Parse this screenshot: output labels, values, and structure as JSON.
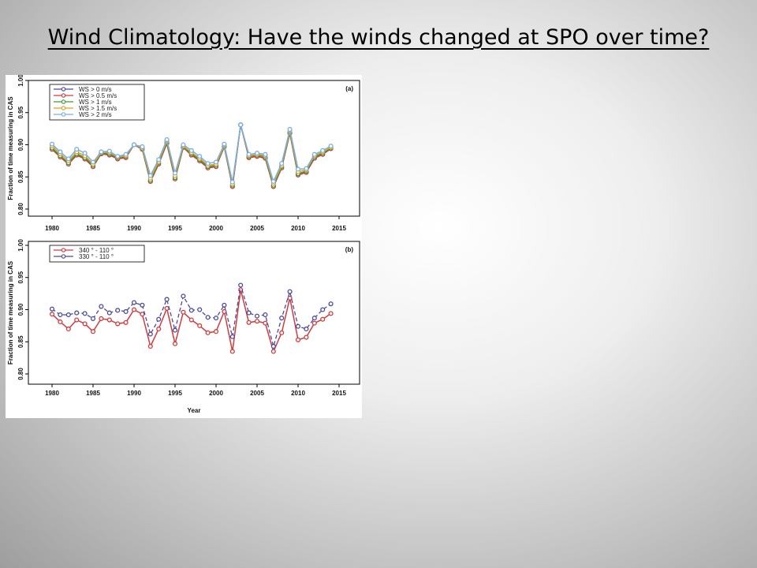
{
  "slide": {
    "title": "Wind Climatology: Have the winds changed at SPO over time?"
  },
  "chart_data": [
    {
      "type": "line",
      "panel_label": "(a)",
      "ylabel": "Fraction of time measuring in CAS",
      "xlabel": "",
      "xlim": [
        1980,
        2015
      ],
      "ylim": [
        0.8,
        1.0
      ],
      "xticks": [
        "1980",
        "1985",
        "1990",
        "1995",
        "2000",
        "2005",
        "2010",
        "2015"
      ],
      "yticks": [
        "0.80",
        "0.85",
        "0.90",
        "0.95",
        "1.00"
      ],
      "legend_position": "top-left",
      "x": [
        1980,
        1981,
        1982,
        1983,
        1984,
        1985,
        1986,
        1987,
        1988,
        1989,
        1990,
        1991,
        1992,
        1993,
        1994,
        1995,
        1996,
        1997,
        1998,
        1999,
        2000,
        2001,
        2002,
        2003,
        2004,
        2005,
        2006,
        2007,
        2008,
        2009,
        2010,
        2011,
        2012,
        2013,
        2014
      ],
      "series": [
        {
          "name": "WS > 0 m/s",
          "color": "#4a4aa0",
          "values": [
            0.893,
            0.881,
            0.87,
            0.884,
            0.878,
            0.866,
            0.886,
            0.884,
            0.878,
            0.88,
            0.9,
            0.893,
            0.843,
            0.87,
            0.902,
            0.847,
            0.896,
            0.884,
            0.875,
            0.864,
            0.866,
            0.897,
            0.835,
            0.931,
            0.88,
            0.882,
            0.879,
            0.835,
            0.864,
            0.918,
            0.853,
            0.857,
            0.879,
            0.885,
            0.894
          ]
        },
        {
          "name": "WS > 0.5 m/s",
          "color": "#d03c3c",
          "values": [
            0.893,
            0.881,
            0.87,
            0.884,
            0.878,
            0.866,
            0.886,
            0.884,
            0.878,
            0.88,
            0.9,
            0.893,
            0.843,
            0.87,
            0.902,
            0.847,
            0.896,
            0.884,
            0.875,
            0.864,
            0.866,
            0.897,
            0.835,
            0.931,
            0.88,
            0.882,
            0.879,
            0.835,
            0.864,
            0.918,
            0.853,
            0.857,
            0.879,
            0.885,
            0.894
          ]
        },
        {
          "name": "WS > 1 m/s",
          "color": "#3a9a3a",
          "values": [
            0.895,
            0.883,
            0.872,
            0.886,
            0.88,
            0.868,
            0.887,
            0.886,
            0.88,
            0.882,
            0.9,
            0.894,
            0.845,
            0.872,
            0.904,
            0.849,
            0.897,
            0.886,
            0.877,
            0.866,
            0.868,
            0.898,
            0.837,
            0.931,
            0.882,
            0.884,
            0.881,
            0.837,
            0.866,
            0.919,
            0.855,
            0.859,
            0.881,
            0.887,
            0.895
          ]
        },
        {
          "name": "WS > 1.5 m/s",
          "color": "#e0a020",
          "values": [
            0.898,
            0.886,
            0.875,
            0.889,
            0.883,
            0.87,
            0.888,
            0.888,
            0.881,
            0.883,
            0.9,
            0.895,
            0.848,
            0.874,
            0.906,
            0.852,
            0.898,
            0.888,
            0.879,
            0.868,
            0.87,
            0.899,
            0.839,
            0.931,
            0.883,
            0.885,
            0.883,
            0.84,
            0.868,
            0.921,
            0.858,
            0.861,
            0.883,
            0.889,
            0.896
          ]
        },
        {
          "name": "WS > 2 m/s",
          "color": "#78aee8",
          "values": [
            0.901,
            0.889,
            0.878,
            0.893,
            0.887,
            0.873,
            0.889,
            0.89,
            0.882,
            0.885,
            0.9,
            0.897,
            0.852,
            0.877,
            0.908,
            0.856,
            0.9,
            0.891,
            0.882,
            0.871,
            0.873,
            0.901,
            0.842,
            0.931,
            0.885,
            0.887,
            0.885,
            0.843,
            0.871,
            0.924,
            0.862,
            0.863,
            0.885,
            0.891,
            0.898
          ]
        }
      ]
    },
    {
      "type": "line",
      "panel_label": "(b)",
      "ylabel": "Fraction of time measuring in CAS",
      "xlabel": "Year",
      "xlim": [
        1980,
        2015
      ],
      "ylim": [
        0.8,
        1.0
      ],
      "xticks": [
        "1980",
        "1985",
        "1990",
        "1995",
        "2000",
        "2005",
        "2010",
        "2015"
      ],
      "yticks": [
        "0.80",
        "0.85",
        "0.90",
        "0.95",
        "1.00"
      ],
      "legend_position": "top-left",
      "x": [
        1980,
        1981,
        1982,
        1983,
        1984,
        1985,
        1986,
        1987,
        1988,
        1989,
        1990,
        1991,
        1992,
        1993,
        1994,
        1995,
        1996,
        1997,
        1998,
        1999,
        2000,
        2001,
        2002,
        2003,
        2004,
        2005,
        2006,
        2007,
        2008,
        2009,
        2010,
        2011,
        2012,
        2013,
        2014
      ],
      "series": [
        {
          "name": "340 ° - 110 °",
          "color": "#d03c3c",
          "values": [
            0.893,
            0.881,
            0.87,
            0.884,
            0.878,
            0.866,
            0.886,
            0.884,
            0.878,
            0.88,
            0.9,
            0.893,
            0.843,
            0.87,
            0.902,
            0.847,
            0.896,
            0.884,
            0.875,
            0.864,
            0.866,
            0.897,
            0.835,
            0.931,
            0.88,
            0.882,
            0.879,
            0.835,
            0.864,
            0.918,
            0.853,
            0.857,
            0.879,
            0.885,
            0.894
          ]
        },
        {
          "name": "330 ° - 110 °",
          "color": "#4a4aa0",
          "values": [
            0.901,
            0.892,
            0.892,
            0.895,
            0.894,
            0.886,
            0.905,
            0.895,
            0.899,
            0.897,
            0.911,
            0.907,
            0.862,
            0.885,
            0.916,
            0.868,
            0.921,
            0.899,
            0.9,
            0.888,
            0.887,
            0.907,
            0.858,
            0.938,
            0.895,
            0.89,
            0.892,
            0.843,
            0.887,
            0.928,
            0.874,
            0.87,
            0.887,
            0.9,
            0.909
          ]
        }
      ]
    }
  ]
}
